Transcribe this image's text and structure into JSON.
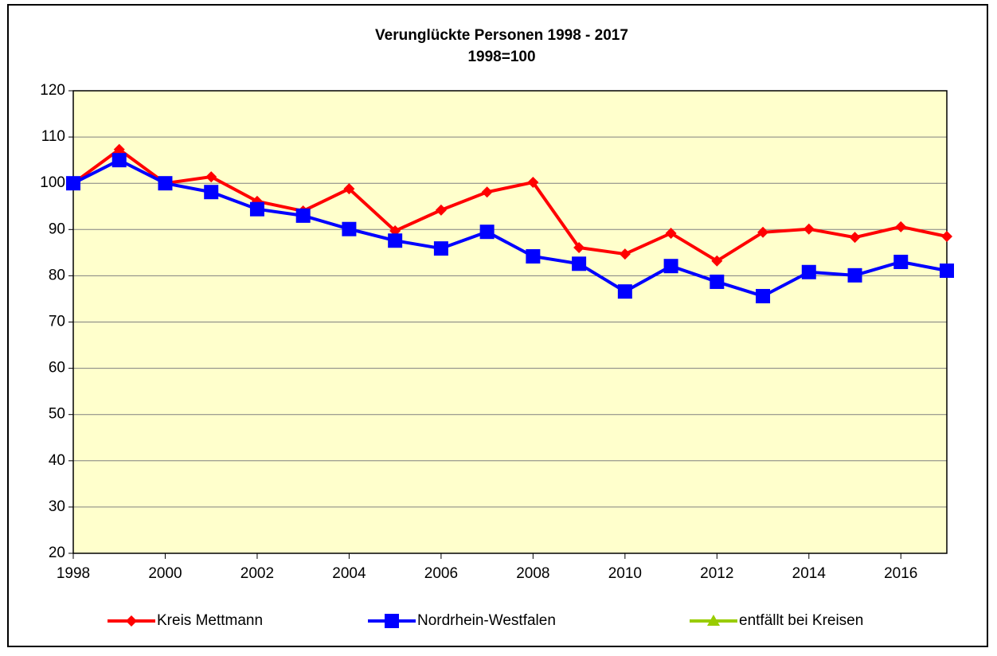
{
  "chart_data": {
    "type": "line",
    "title": "Verunglückte Personen 1998 - 2017",
    "subtitle": "1998=100",
    "x": [
      1998,
      1999,
      2000,
      2001,
      2002,
      2003,
      2004,
      2005,
      2006,
      2007,
      2008,
      2009,
      2010,
      2011,
      2012,
      2013,
      2014,
      2015,
      2016,
      2017
    ],
    "series": [
      {
        "name": "Kreis Mettmann",
        "color": "#ff0000",
        "marker": "diamond",
        "values": [
          100,
          107.3,
          100,
          101.4,
          96.1,
          94,
          98.8,
          89.7,
          94.2,
          98.1,
          100.2,
          86.1,
          84.7,
          89.2,
          83.2,
          89.4,
          90.1,
          88.3,
          90.6,
          88.5
        ]
      },
      {
        "name": "Nordrhein-Westfalen",
        "color": "#0000ff",
        "marker": "square",
        "values": [
          100,
          105,
          100,
          98.1,
          94.4,
          93,
          90.1,
          87.6,
          85.9,
          89.5,
          84.2,
          82.6,
          76.6,
          82.1,
          78.7,
          75.6,
          80.8,
          80.1,
          83,
          81.1
        ]
      },
      {
        "name": "entfällt bei Kreisen",
        "color": "#99cc00",
        "marker": "triangle",
        "values": [
          null,
          null,
          null,
          null,
          null,
          null,
          null,
          null,
          null,
          null,
          null,
          null,
          null,
          null,
          null,
          null,
          null,
          null,
          null,
          null
        ]
      }
    ],
    "xlim": [
      1998,
      2017
    ],
    "xticks": [
      1998,
      2000,
      2002,
      2004,
      2006,
      2008,
      2010,
      2012,
      2014,
      2016
    ],
    "ylim": [
      20,
      120
    ],
    "yticks": [
      20,
      30,
      40,
      50,
      60,
      70,
      80,
      90,
      100,
      110,
      120
    ],
    "grid": true,
    "legend": "bottom",
    "plot_background": "#ffffcc"
  }
}
